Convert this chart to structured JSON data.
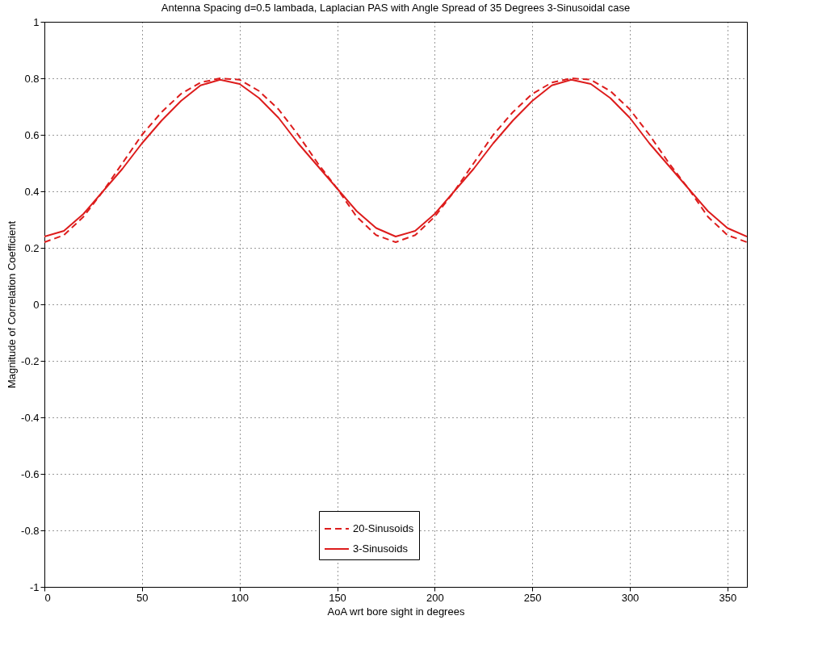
{
  "chart_data": {
    "type": "line",
    "title": "Antenna Spacing d=0.5 lambada, Laplacian PAS with Angle Spread of 35 Degrees 3-Sinusoidal case",
    "xlabel": "AoA wrt bore sight in degrees",
    "ylabel": "Magnitude of Correlation Coefficient",
    "x": [
      0,
      10,
      20,
      30,
      40,
      50,
      60,
      70,
      80,
      90,
      100,
      110,
      120,
      130,
      140,
      150,
      160,
      170,
      180,
      190,
      200,
      210,
      220,
      230,
      240,
      250,
      260,
      270,
      280,
      290,
      300,
      310,
      320,
      330,
      340,
      350,
      360
    ],
    "series": [
      {
        "name": "20-Sinusoids",
        "color": "#dd1c1c",
        "line_style": "dashed",
        "values": [
          0.22,
          0.245,
          0.31,
          0.4,
          0.5,
          0.6,
          0.68,
          0.745,
          0.785,
          0.8,
          0.795,
          0.755,
          0.69,
          0.6,
          0.5,
          0.41,
          0.31,
          0.245,
          0.22,
          0.245,
          0.31,
          0.4,
          0.5,
          0.6,
          0.68,
          0.745,
          0.785,
          0.8,
          0.795,
          0.755,
          0.69,
          0.6,
          0.5,
          0.41,
          0.31,
          0.245,
          0.22
        ]
      },
      {
        "name": "3-Sinusoids",
        "color": "#dd1c1c",
        "line_style": "solid",
        "values": [
          0.24,
          0.26,
          0.32,
          0.4,
          0.48,
          0.57,
          0.65,
          0.72,
          0.775,
          0.795,
          0.78,
          0.73,
          0.66,
          0.57,
          0.49,
          0.41,
          0.33,
          0.27,
          0.24,
          0.26,
          0.32,
          0.4,
          0.48,
          0.57,
          0.65,
          0.72,
          0.775,
          0.795,
          0.78,
          0.73,
          0.66,
          0.57,
          0.49,
          0.41,
          0.33,
          0.27,
          0.24
        ]
      }
    ],
    "xlim": [
      0,
      360
    ],
    "xticks": [
      0,
      50,
      100,
      150,
      200,
      250,
      300,
      350
    ],
    "ylim": [
      -1,
      1
    ],
    "yticks": [
      -1,
      -0.8,
      -0.6,
      -0.4,
      -0.2,
      0,
      0.2,
      0.4,
      0.6,
      0.8,
      1
    ],
    "grid": true,
    "legend": "bottom"
  }
}
